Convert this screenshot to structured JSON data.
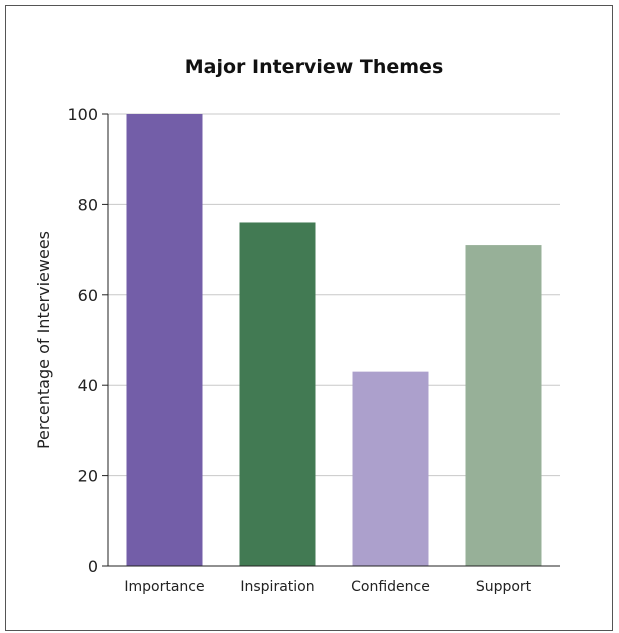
{
  "chart_data": {
    "type": "bar",
    "title": "Major Interview Themes",
    "xlabel": "",
    "ylabel": "Percentage of Interviewees",
    "ylim": [
      0,
      100
    ],
    "yticks": [
      0,
      20,
      40,
      60,
      80,
      100
    ],
    "grid": true,
    "categories": [
      "Importance",
      "Inspiration",
      "Confidence",
      "Support"
    ],
    "values": [
      100,
      76,
      43,
      71
    ],
    "colors": [
      "#735ea8",
      "#427a53",
      "#aca0cc",
      "#97b098"
    ]
  }
}
